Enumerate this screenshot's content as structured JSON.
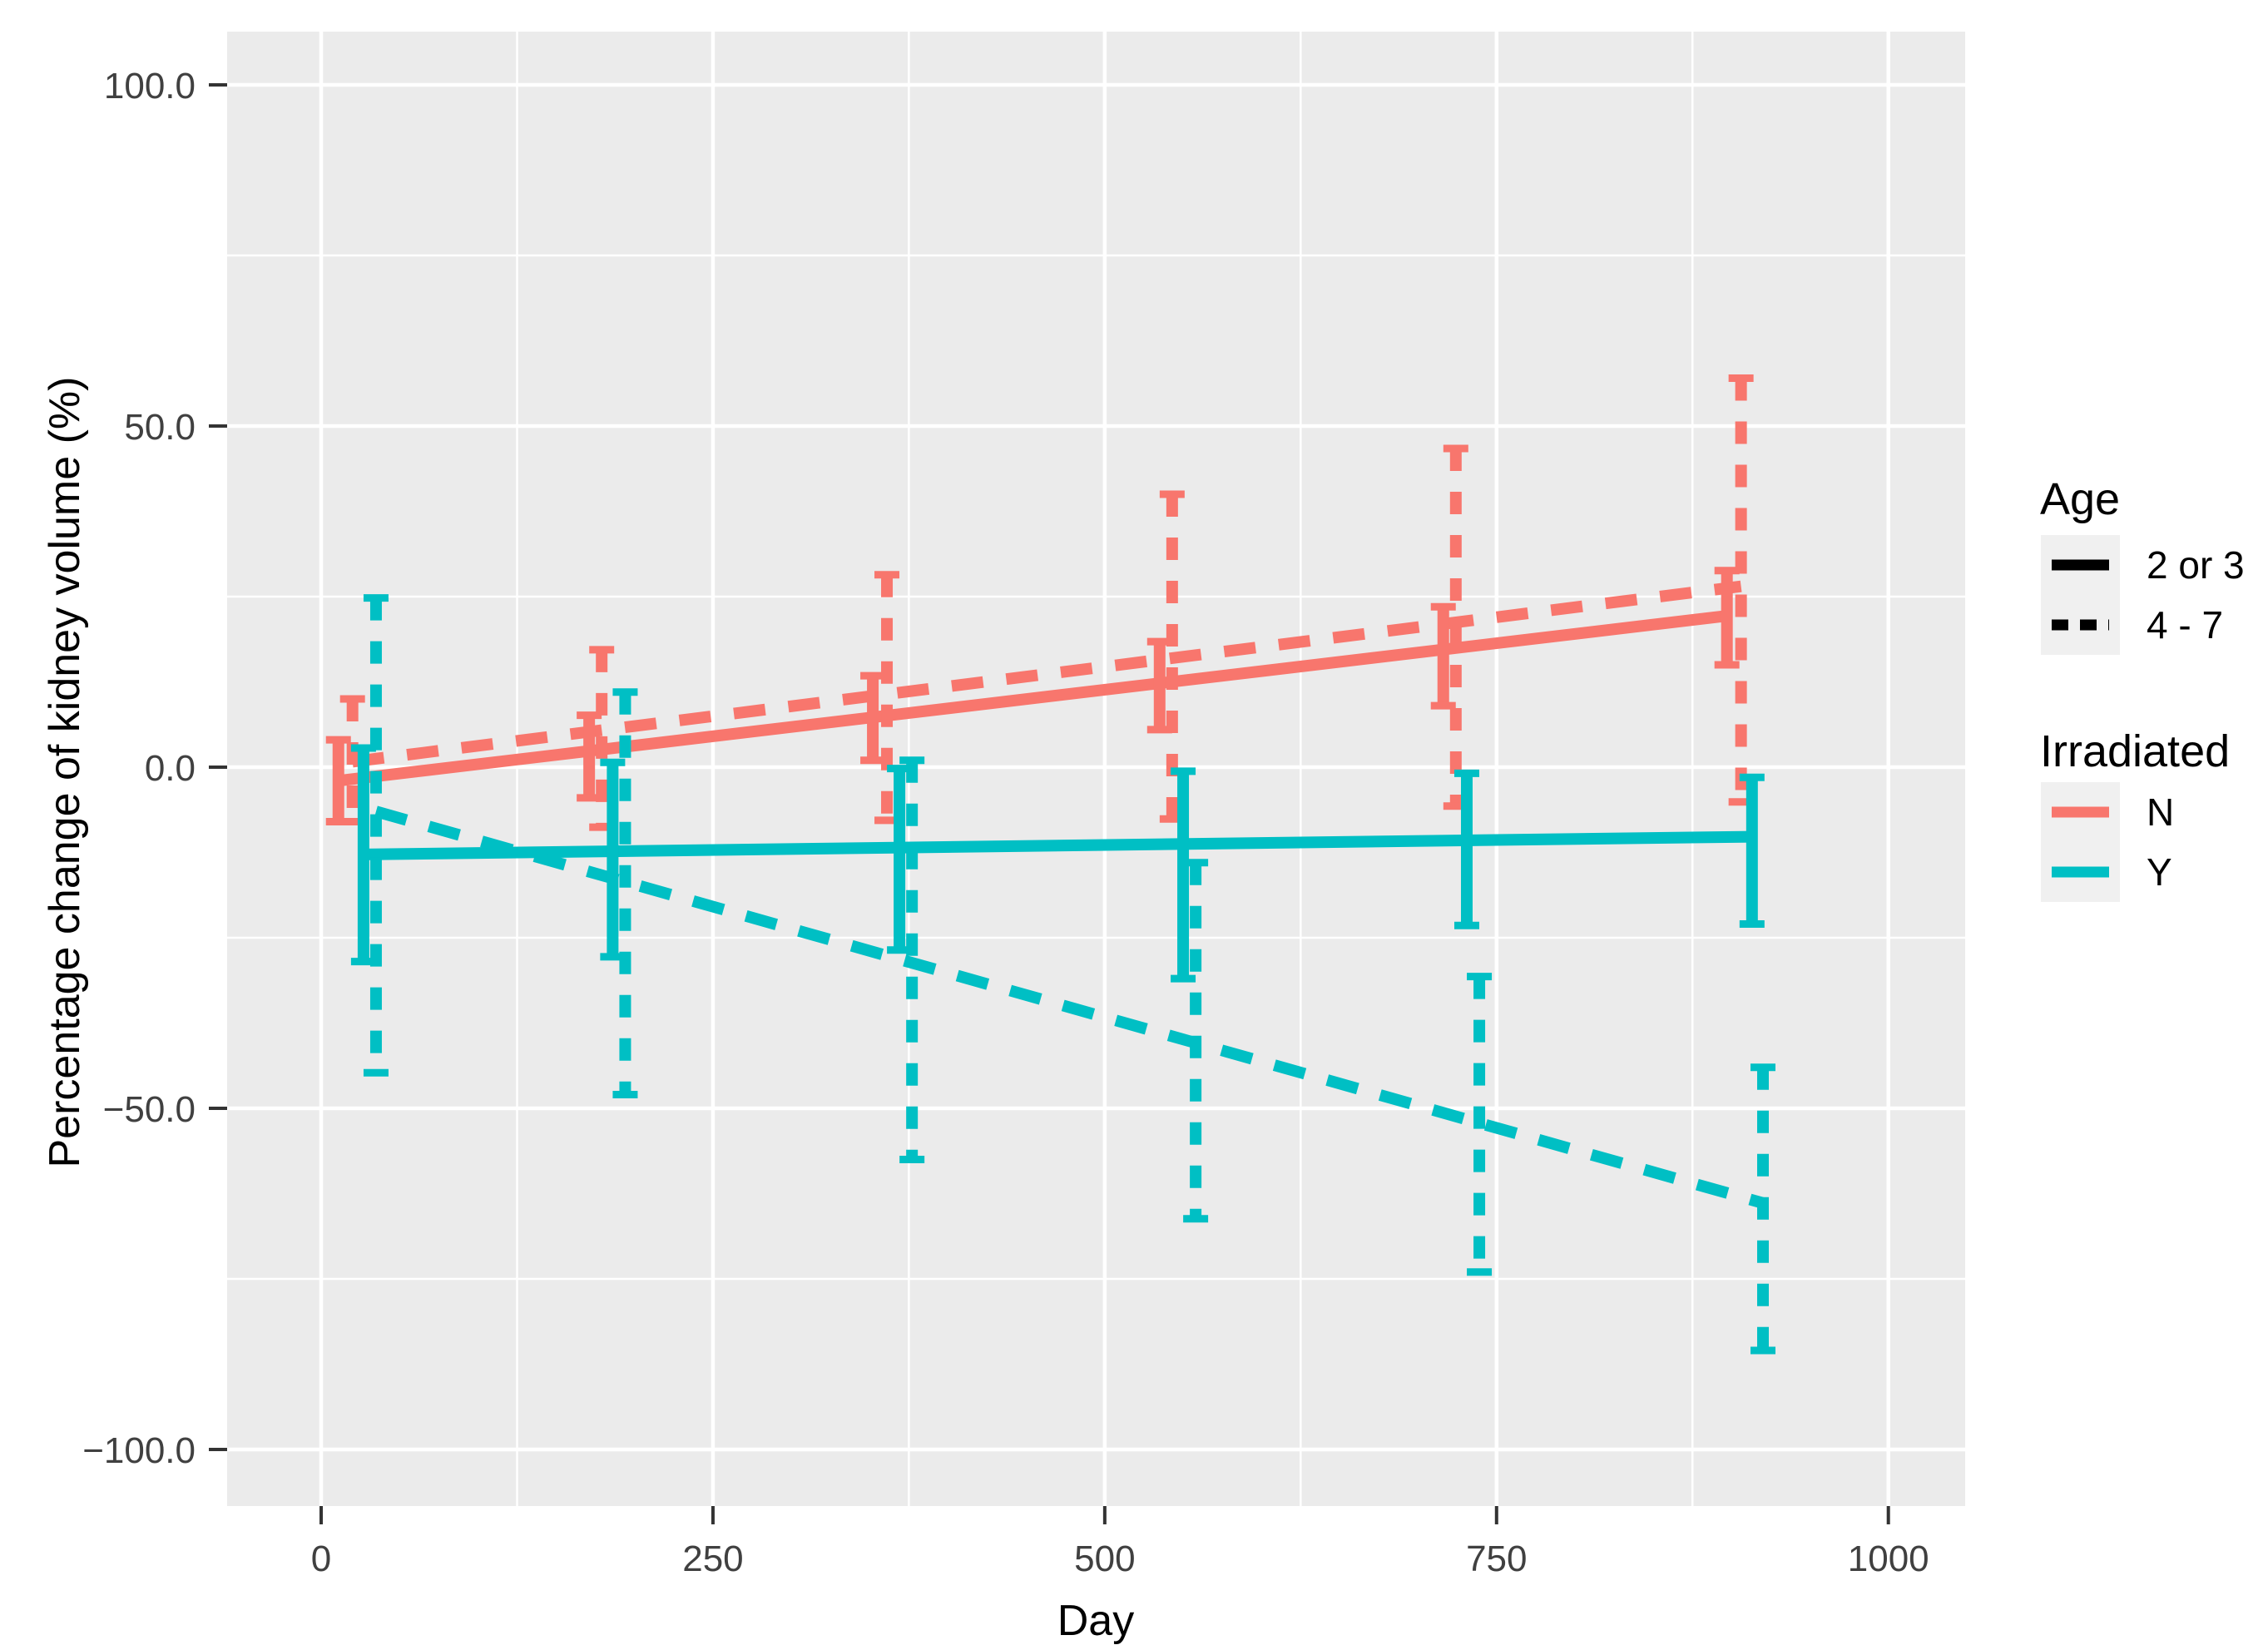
{
  "chart_data": {
    "type": "line",
    "title": "",
    "xlabel": "Day",
    "ylabel": "Percentage change of kidney volume (%)",
    "xlim": [
      -60,
      1049
    ],
    "ylim": [
      -108.3,
      107.8
    ],
    "grid": "on",
    "x_ticks": [
      0,
      250,
      500,
      750,
      1000
    ],
    "x_tick_labels": [
      "0",
      "250",
      "500",
      "750",
      "1000"
    ],
    "x_minor_ticks": [
      125,
      375,
      625,
      875
    ],
    "y_ticks": [
      100,
      50,
      0,
      -50,
      -100
    ],
    "y_tick_labels": [
      "100.0",
      "50.0",
      "0.0",
      "−50.0",
      "−100.0"
    ],
    "y_minor_ticks": [
      75,
      25,
      -25,
      -75
    ],
    "panel_color": "#EBEBEB",
    "grid_color": "#FFFFFF",
    "tick_label_color": "#404040",
    "series": [
      {
        "name": "Irradiated N, Age 2 or 3",
        "irradiated": "N",
        "age": "2 or 3",
        "color": "#F8766D",
        "linestyle": "solid",
        "line": [
          [
            11,
            -2.0
          ],
          [
            898,
            22.2
          ]
        ],
        "error_bars": [
          {
            "x": 11,
            "lo": -8.0,
            "hi": 4.0
          },
          {
            "x": 171,
            "lo": -4.5,
            "hi": 7.6
          },
          {
            "x": 352,
            "lo": 1.0,
            "hi": 13.4
          },
          {
            "x": 535,
            "lo": 5.5,
            "hi": 18.4
          },
          {
            "x": 716,
            "lo": 9.0,
            "hi": 23.5
          },
          {
            "x": 897,
            "lo": 15.0,
            "hi": 28.8
          }
        ]
      },
      {
        "name": "Irradiated N, Age 4 - 7",
        "irradiated": "N",
        "age": "4 - 7",
        "color": "#F8766D",
        "linestyle": "dashed",
        "line": [
          [
            20,
            0.8
          ],
          [
            906,
            26.5
          ]
        ],
        "error_bars": [
          {
            "x": 20,
            "lo": -8.0,
            "hi": 10.0
          },
          {
            "x": 179,
            "lo": -8.8,
            "hi": 17.2
          },
          {
            "x": 361,
            "lo": -7.8,
            "hi": 28.2
          },
          {
            "x": 543,
            "lo": -7.6,
            "hi": 40.0
          },
          {
            "x": 724,
            "lo": -5.7,
            "hi": 46.7
          },
          {
            "x": 906,
            "lo": -5.1,
            "hi": 57.0
          }
        ]
      },
      {
        "name": "Irradiated Y, Age 2 or 3",
        "irradiated": "Y",
        "age": "2 or 3",
        "color": "#00BFC4",
        "linestyle": "solid",
        "line": [
          [
            27,
            -12.8
          ],
          [
            913,
            -10.2
          ]
        ],
        "error_bars": [
          {
            "x": 27,
            "lo": -28.5,
            "hi": 2.8
          },
          {
            "x": 186,
            "lo": -27.8,
            "hi": 0.7
          },
          {
            "x": 369,
            "lo": -26.8,
            "hi": -0.2
          },
          {
            "x": 550,
            "lo": -31.0,
            "hi": -0.6
          },
          {
            "x": 731,
            "lo": -23.2,
            "hi": -0.9
          },
          {
            "x": 913,
            "lo": -23.0,
            "hi": -1.5
          }
        ]
      },
      {
        "name": "Irradiated Y, Age 4 - 7",
        "irradiated": "Y",
        "age": "4 - 7",
        "color": "#00BFC4",
        "linestyle": "dashed",
        "line": [
          [
            35,
            -6.5
          ],
          [
            920,
            -63.9
          ]
        ],
        "error_bars": [
          {
            "x": 35,
            "lo": -44.8,
            "hi": 24.8
          },
          {
            "x": 194,
            "lo": -48.0,
            "hi": 11.0
          },
          {
            "x": 377,
            "lo": -57.5,
            "hi": 1.0
          },
          {
            "x": 558,
            "lo": -66.2,
            "hi": -14.0
          },
          {
            "x": 739,
            "lo": -74.0,
            "hi": -30.7
          },
          {
            "x": 920,
            "lo": -85.5,
            "hi": -44.0
          }
        ]
      }
    ],
    "legend": {
      "position": "right",
      "key_color": "#F0F0F0",
      "age": {
        "title": "Age",
        "items": [
          {
            "label": "2 or 3",
            "style": "solid"
          },
          {
            "label": "4 - 7",
            "style": "dashed"
          }
        ]
      },
      "irradiated": {
        "title": "Irradiated",
        "items": [
          {
            "label": "N",
            "color": "#F8766D"
          },
          {
            "label": "Y",
            "color": "#00BFC4"
          }
        ]
      }
    }
  }
}
